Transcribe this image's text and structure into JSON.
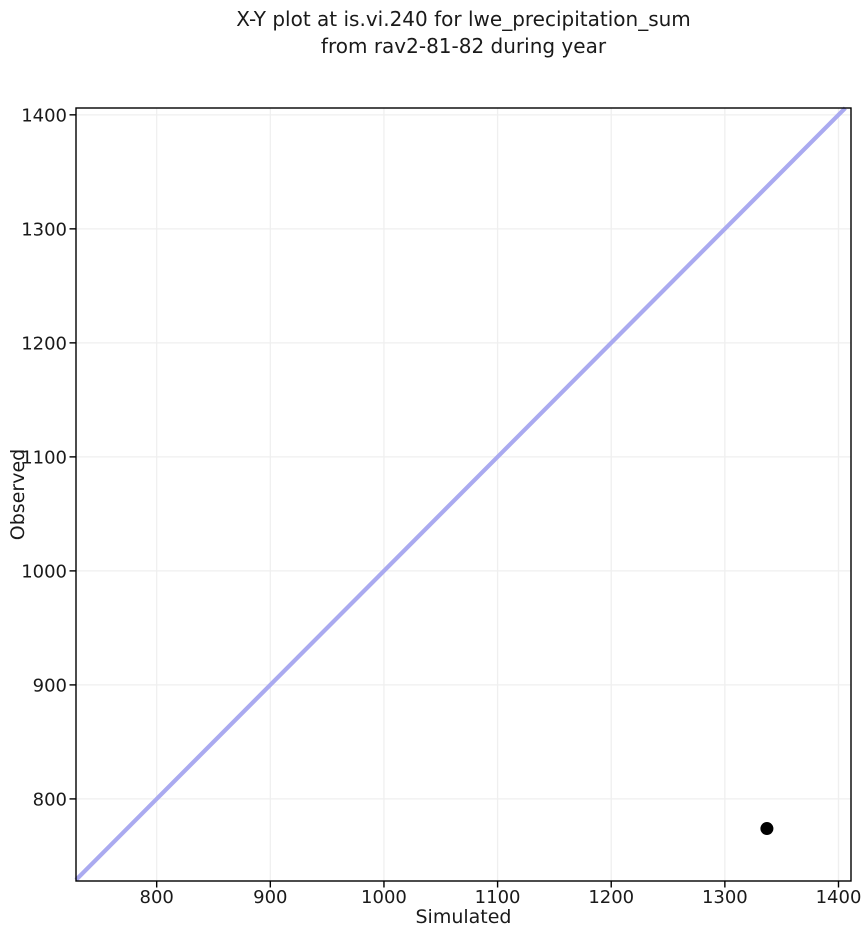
{
  "figure": {
    "title_line1": "X-Y plot at is.vi.240 for lwe_precipitation_sum",
    "title_line2": "from rav2-81-82 during year"
  },
  "chart_data": {
    "type": "scatter",
    "title": "X-Y plot at is.vi.240 for lwe_precipitation_sum\nfrom rav2-81-82 during year",
    "xlabel": "Simulated",
    "ylabel": "Observed",
    "xlim": [
      729,
      1411
    ],
    "ylim": [
      728,
      1406
    ],
    "xticks": [
      800,
      900,
      1000,
      1100,
      1200,
      1300,
      1400
    ],
    "yticks": [
      800,
      900,
      1000,
      1100,
      1200,
      1300,
      1400
    ],
    "grid": true,
    "legend": false,
    "points": [
      {
        "x": 1337,
        "y": 774
      }
    ],
    "identity_line": {
      "y_equals_x": true,
      "from": 729,
      "to": 1406
    },
    "colors": {
      "point": "#000000",
      "identity_line": "#aaaaf0",
      "grid": "#efefef",
      "spine": "#000000",
      "text": "#1a1a1a",
      "background": "#ffffff"
    }
  }
}
